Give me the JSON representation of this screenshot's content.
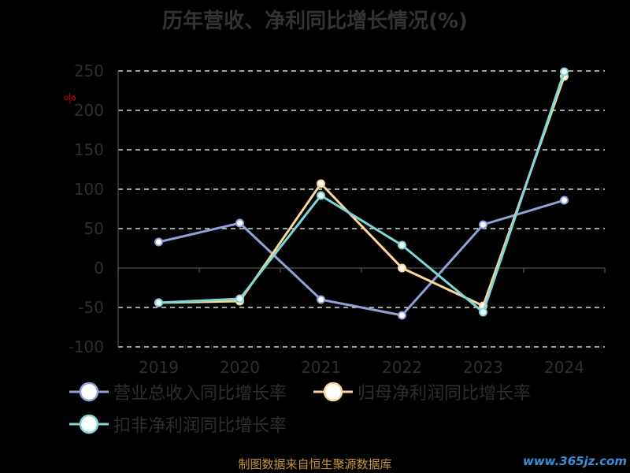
{
  "chart_data": {
    "type": "line",
    "title": "历年营收、净利同比增长情况(%)",
    "ylabel": "%",
    "categories": [
      "2019",
      "2020",
      "2021",
      "2022",
      "2023",
      "2024"
    ],
    "ylim": [
      -100,
      250
    ],
    "yticks": [
      250,
      200,
      150,
      100,
      50,
      0,
      -50,
      -100
    ],
    "grid": true,
    "legend_position": "bottom-left",
    "series": [
      {
        "name": "营业总收入同比增长率",
        "values": [
          33,
          57,
          -40,
          -60,
          55,
          86
        ],
        "color": "#8fa3d8"
      },
      {
        "name": "归母净利润同比增长率",
        "values": [
          -44,
          -42,
          107,
          0,
          -48,
          243
        ],
        "color": "#f7d79a"
      },
      {
        "name": "扣非净利润同比增长率",
        "values": [
          -44,
          -39,
          92,
          29,
          -56,
          249
        ],
        "color": "#7fd6d6"
      }
    ]
  },
  "footer": {
    "source": "制图数据来自恒生聚源数据库",
    "watermark": "www.365jz.com"
  },
  "colors": {
    "background": "#000000",
    "title": "#333333",
    "axis_text": "#2e2e2e",
    "grid": "#ffffff",
    "source_text": "#c8963c",
    "watermark": "#3b8fd8",
    "ylabel": "#cc0000"
  }
}
